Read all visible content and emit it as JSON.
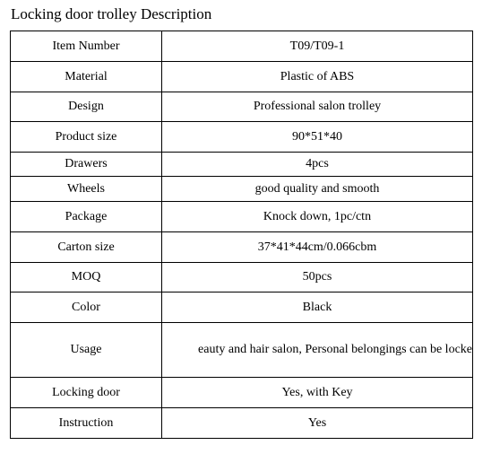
{
  "title": "Locking door trolley Description",
  "rows": [
    {
      "label": "Item Number",
      "value": "T09/T09-1"
    },
    {
      "label": "Material",
      "value": "Plastic of ABS"
    },
    {
      "label": "Design",
      "value": "Professional salon trolley"
    },
    {
      "label": "Product size",
      "value": "90*51*40"
    },
    {
      "label": "Drawers",
      "value": "4pcs"
    },
    {
      "label": "Wheels",
      "value": "good quality and smooth"
    },
    {
      "label": "Package",
      "value": "Knock down, 1pc/ctn"
    },
    {
      "label": "Carton size",
      "value": "37*41*44cm/0.066cbm"
    },
    {
      "label": "MOQ",
      "value": "50pcs"
    },
    {
      "label": "Color",
      "value": "Black"
    },
    {
      "label": "Usage",
      "value": "eauty and hair salon, Personal belongings can be locke"
    },
    {
      "label": "Locking door",
      "value": "Yes, with Key"
    },
    {
      "label": "Instruction",
      "value": "Yes"
    }
  ]
}
